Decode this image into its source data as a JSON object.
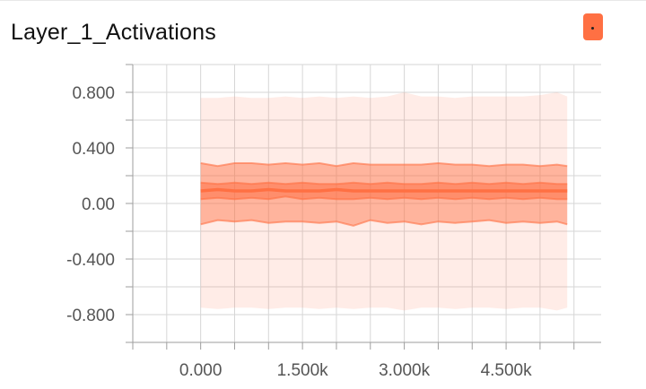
{
  "card": {
    "title": "Layer_1_Activations",
    "color_button_label": ".",
    "series_color": "#ff7043"
  },
  "chart_data": {
    "type": "area",
    "title": "Layer_1_Activations",
    "xlabel": "",
    "ylabel": "",
    "xlim": [
      -1000,
      5900
    ],
    "ylim": [
      -1.0,
      1.0
    ],
    "grid": true,
    "x_ticks": [
      0,
      1500,
      3000,
      4500
    ],
    "x_tick_labels": [
      "0.000",
      "1.500k",
      "3.000k",
      "4.500k"
    ],
    "y_ticks": [
      0.8,
      0.4,
      0.0,
      -0.4,
      -0.8
    ],
    "y_tick_labels": [
      "0.800",
      "0.400",
      "0.00",
      "-0.400",
      "-0.800"
    ],
    "x": [
      0,
      250,
      500,
      750,
      1000,
      1250,
      1500,
      1750,
      2000,
      2250,
      2500,
      2750,
      3000,
      3250,
      3500,
      3750,
      4000,
      4250,
      4500,
      4750,
      5000,
      5250,
      5400
    ],
    "bands": [
      {
        "lower": [
          -0.75,
          -0.76,
          -0.75,
          -0.75,
          -0.76,
          -0.75,
          -0.75,
          -0.76,
          -0.75,
          -0.76,
          -0.75,
          -0.75,
          -0.77,
          -0.75,
          -0.75,
          -0.76,
          -0.75,
          -0.75,
          -0.76,
          -0.75,
          -0.75,
          -0.77,
          -0.75
        ],
        "upper": [
          0.76,
          0.76,
          0.77,
          0.76,
          0.76,
          0.77,
          0.76,
          0.77,
          0.76,
          0.77,
          0.76,
          0.77,
          0.8,
          0.77,
          0.77,
          0.76,
          0.77,
          0.77,
          0.77,
          0.77,
          0.78,
          0.8,
          0.77
        ]
      },
      {
        "lower": [
          -0.15,
          -0.12,
          -0.13,
          -0.12,
          -0.14,
          -0.13,
          -0.13,
          -0.14,
          -0.13,
          -0.16,
          -0.12,
          -0.14,
          -0.13,
          -0.15,
          -0.13,
          -0.14,
          -0.13,
          -0.12,
          -0.14,
          -0.13,
          -0.14,
          -0.13,
          -0.15
        ],
        "upper": [
          0.29,
          0.27,
          0.29,
          0.29,
          0.28,
          0.29,
          0.28,
          0.29,
          0.27,
          0.29,
          0.28,
          0.28,
          0.28,
          0.28,
          0.29,
          0.28,
          0.28,
          0.27,
          0.28,
          0.28,
          0.27,
          0.28,
          0.27
        ]
      },
      {
        "lower": [
          0.03,
          0.04,
          0.03,
          0.04,
          0.03,
          0.05,
          0.03,
          0.04,
          0.03,
          0.03,
          0.04,
          0.03,
          0.04,
          0.03,
          0.04,
          0.03,
          0.04,
          0.03,
          0.04,
          0.03,
          0.04,
          0.03,
          0.03
        ],
        "upper": [
          0.15,
          0.14,
          0.15,
          0.14,
          0.15,
          0.14,
          0.15,
          0.14,
          0.14,
          0.15,
          0.14,
          0.15,
          0.14,
          0.14,
          0.15,
          0.14,
          0.15,
          0.14,
          0.15,
          0.14,
          0.15,
          0.14,
          0.14
        ]
      }
    ],
    "median": [
      0.09,
      0.1,
      0.09,
      0.09,
      0.1,
      0.09,
      0.09,
      0.09,
      0.1,
      0.09,
      0.09,
      0.09,
      0.09,
      0.09,
      0.09,
      0.09,
      0.09,
      0.09,
      0.09,
      0.09,
      0.09,
      0.09,
      0.09
    ]
  }
}
